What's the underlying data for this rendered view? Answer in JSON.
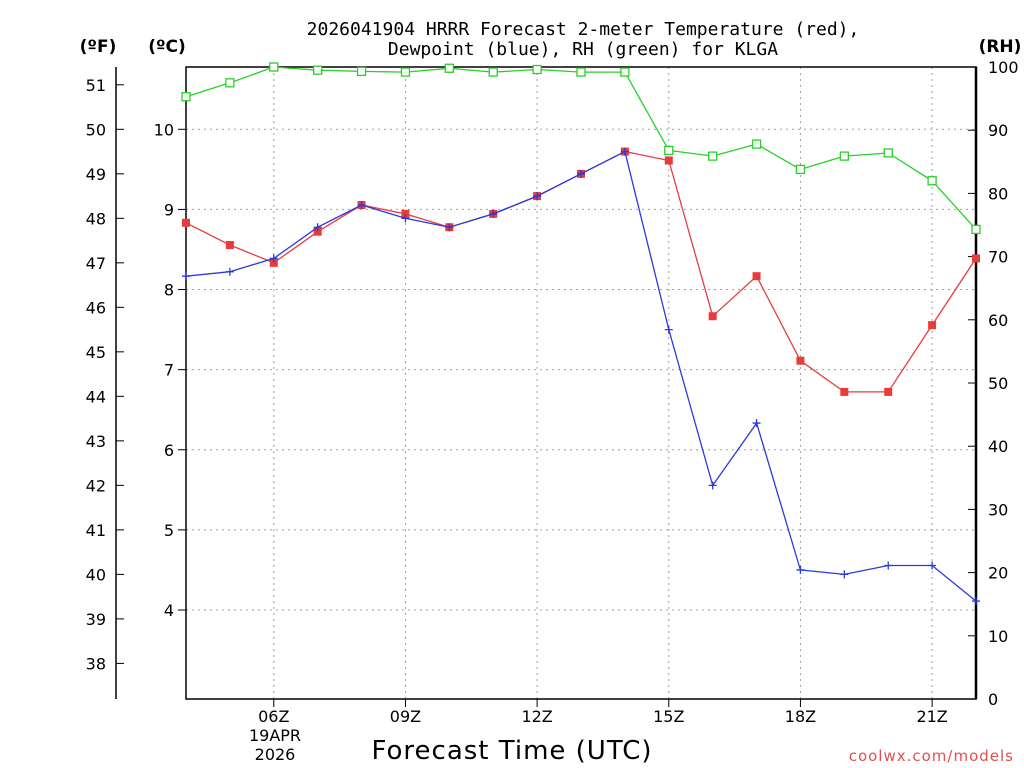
{
  "chart_data": {
    "type": "line",
    "title_line1": "2026041904 HRRR Forecast 2-meter Temperature (red),",
    "title_line2": "Dewpoint (blue), RH (green) for KLGA",
    "unit_f": "(ºF)",
    "unit_c": "(ºC)",
    "unit_rh": "(RH)",
    "xlabel": "Forecast Time (UTC)",
    "credit": "coolwx.com/models",
    "date_label_1": "19APR",
    "date_label_2": "2026",
    "x_hours": [
      4,
      5,
      6,
      7,
      8,
      9,
      10,
      11,
      12,
      13,
      14,
      15,
      16,
      17,
      18,
      19,
      20,
      21,
      22
    ],
    "x_range": [
      4,
      22
    ],
    "x_ticks": [
      {
        "hour": 6,
        "label": "06Z"
      },
      {
        "hour": 9,
        "label": "09Z"
      },
      {
        "hour": 12,
        "label": "12Z"
      },
      {
        "hour": 15,
        "label": "15Z"
      },
      {
        "hour": 18,
        "label": "18Z"
      },
      {
        "hour": 21,
        "label": "21Z"
      }
    ],
    "y_left_f": {
      "range": [
        37.2,
        51.4
      ],
      "ticks": [
        38,
        39,
        40,
        41,
        42,
        43,
        44,
        45,
        46,
        47,
        48,
        49,
        50,
        51
      ]
    },
    "y_left_c": {
      "ticks": [
        4,
        5,
        6,
        7,
        8,
        9,
        10
      ]
    },
    "y_right_rh": {
      "range": [
        0,
        100
      ],
      "ticks": [
        0,
        10,
        20,
        30,
        40,
        50,
        60,
        70,
        80,
        90,
        100
      ]
    },
    "series": [
      {
        "name": "Temperature",
        "units": "F",
        "color": "#e83c3c",
        "marker": "filled-square",
        "values": [
          47.9,
          47.4,
          47.0,
          47.7,
          48.3,
          48.1,
          47.8,
          48.1,
          48.5,
          49.0,
          49.5,
          49.3,
          45.8,
          46.7,
          44.8,
          44.1,
          44.1,
          45.6,
          47.1
        ]
      },
      {
        "name": "Dewpoint",
        "units": "F",
        "color": "#2a3ae0",
        "marker": "plus",
        "values": [
          46.7,
          46.8,
          47.1,
          47.8,
          48.3,
          48.0,
          47.8,
          48.1,
          48.5,
          49.0,
          49.5,
          45.5,
          42.0,
          43.4,
          40.1,
          40.0,
          40.2,
          40.2,
          39.4
        ]
      },
      {
        "name": "RH",
        "units": "%",
        "color": "#2ad02a",
        "marker": "open-square",
        "values": [
          95.3,
          97.5,
          100.0,
          99.5,
          99.3,
          99.2,
          99.8,
          99.2,
          99.6,
          99.2,
          99.2,
          86.8,
          85.9,
          87.8,
          83.8,
          85.9,
          86.4,
          82.0,
          74.3
        ]
      }
    ]
  }
}
